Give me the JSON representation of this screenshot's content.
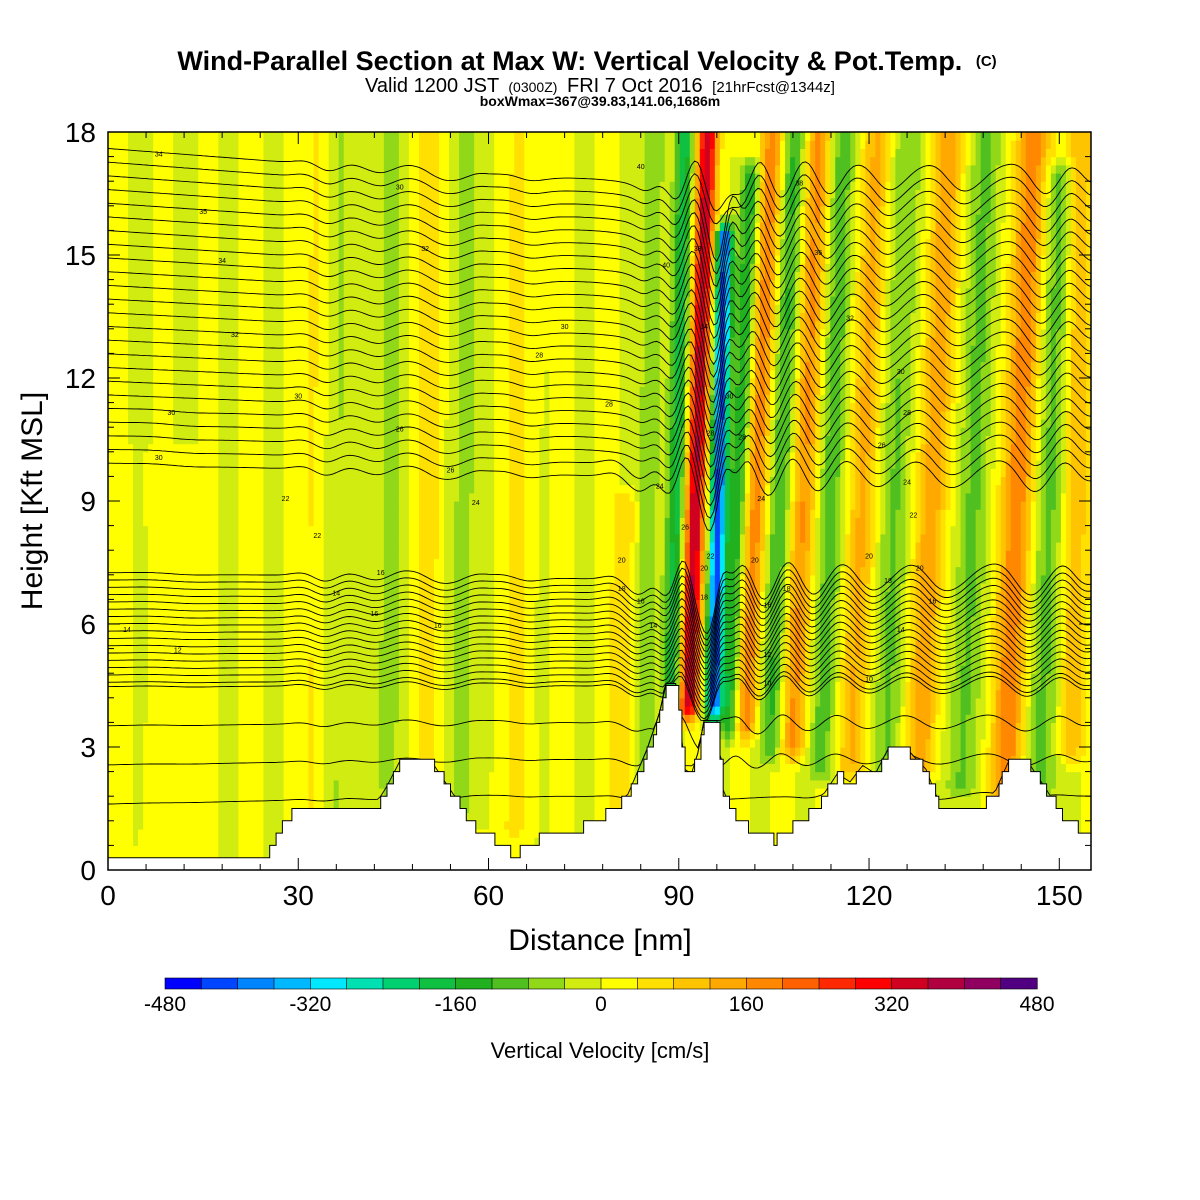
{
  "chart_data": {
    "type": "heatmap",
    "title": "Wind-Parallel Section at Max W: Vertical Velocity & Pot.Temp.",
    "title_mark": "(C)",
    "subtitle_parts": {
      "a": "Valid 1200 JST",
      "b": "(0300Z)",
      "c": "FRI 7 Oct 2016",
      "d": "[21hrFcst@1344z]"
    },
    "subtitle2": "boxWmax=367@39.83,141.06,1686m",
    "xlabel": "Distance [nm]",
    "ylabel": "Height [Kft MSL]",
    "xlim": [
      0,
      155
    ],
    "ylim": [
      0,
      18
    ],
    "x_ticks": [
      0,
      30,
      60,
      90,
      120,
      150
    ],
    "y_ticks": [
      0,
      3,
      6,
      9,
      12,
      15,
      18
    ],
    "colorbar": {
      "label": "Vertical Velocity [cm/s]",
      "ticks": [
        -480,
        -320,
        -160,
        0,
        160,
        320,
        480
      ],
      "colors": [
        "#0000ff",
        "#0045ff",
        "#0085ff",
        "#00b8ff",
        "#00e8ff",
        "#00e0b0",
        "#00d070",
        "#10c040",
        "#20b020",
        "#50c020",
        "#90d818",
        "#d0ec10",
        "#ffff00",
        "#ffe000",
        "#ffc400",
        "#ffa800",
        "#ff8800",
        "#ff6000",
        "#ff2800",
        "#ff0000",
        "#d00020",
        "#b00040",
        "#900060",
        "#500080"
      ]
    },
    "velocity_features": [
      {
        "x": 91.5,
        "w": 1.6,
        "peak": 360,
        "y0": 4.0,
        "y1": 18,
        "tilt": 0.22
      },
      {
        "x": 95.5,
        "w": 1.3,
        "peak": -420,
        "y0": 4.0,
        "y1": 15.5,
        "tilt": 0.15
      },
      {
        "x": 89.0,
        "w": 1.5,
        "peak": -180,
        "y0": 4.5,
        "y1": 18,
        "tilt": 0.15
      },
      {
        "x": 98.0,
        "w": 1.5,
        "peak": -160,
        "y0": 3.5,
        "y1": 17,
        "tilt": 0.25
      },
      {
        "x": 100.5,
        "w": 1.8,
        "peak": 190,
        "y0": 3.5,
        "y1": 18,
        "tilt": 0.3
      },
      {
        "x": 104.5,
        "w": 1.8,
        "peak": -130,
        "y0": 3.0,
        "y1": 18,
        "tilt": 0.25
      },
      {
        "x": 108.0,
        "w": 2.0,
        "peak": 170,
        "y0": 3.0,
        "y1": 18,
        "tilt": 0.28
      },
      {
        "x": 112.5,
        "w": 2.0,
        "peak": -110,
        "y0": 2.5,
        "y1": 18,
        "tilt": 0.22
      },
      {
        "x": 117.0,
        "w": 2.2,
        "peak": 130,
        "y0": 2.5,
        "y1": 18,
        "tilt": 0.28
      },
      {
        "x": 122.5,
        "w": 2.4,
        "peak": -80,
        "y0": 2.5,
        "y1": 18,
        "tilt": 0.24
      },
      {
        "x": 128.0,
        "w": 2.4,
        "peak": 150,
        "y0": 2.5,
        "y1": 18,
        "tilt": 0.3
      },
      {
        "x": 134.5,
        "w": 2.4,
        "peak": -90,
        "y0": 2.0,
        "y1": 18,
        "tilt": 0.25
      },
      {
        "x": 141.5,
        "w": 2.6,
        "peak": 190,
        "y0": 2.0,
        "y1": 18,
        "tilt": 0.28
      },
      {
        "x": 147.0,
        "w": 2.4,
        "peak": -100,
        "y0": 2.0,
        "y1": 17,
        "tilt": 0.2
      },
      {
        "x": 152.0,
        "w": 2.0,
        "peak": 120,
        "y0": 3.0,
        "y1": 18,
        "tilt": 0.1
      },
      {
        "x": 44.0,
        "w": 2.2,
        "peak": -60,
        "y0": 2.0,
        "y1": 18,
        "tilt": 0.05
      },
      {
        "x": 50.0,
        "w": 2.2,
        "peak": 60,
        "y0": 2.0,
        "y1": 18,
        "tilt": 0.05
      },
      {
        "x": 56.0,
        "w": 2.2,
        "peak": -55,
        "y0": 1.5,
        "y1": 18,
        "tilt": 0.05
      },
      {
        "x": 64.0,
        "w": 2.4,
        "peak": 50,
        "y0": 1.0,
        "y1": 18,
        "tilt": 0.05
      },
      {
        "x": 36.0,
        "w": 2.0,
        "peak": -45,
        "y0": 1.5,
        "y1": 18,
        "tilt": 0.05
      },
      {
        "x": 32.0,
        "w": 2.0,
        "peak": 45,
        "y0": 1.5,
        "y1": 18,
        "tilt": 0.05
      },
      {
        "x": 81.0,
        "w": 2.0,
        "peak": 80,
        "y0": 1.0,
        "y1": 9,
        "tilt": 0.05
      },
      {
        "x": 84.5,
        "w": 1.6,
        "peak": -80,
        "y0": 1.5,
        "y1": 18,
        "tilt": 0.1
      },
      {
        "x": 10.0,
        "w": 4.0,
        "peak": 15,
        "y0": 0.3,
        "y1": 10,
        "tilt": 0.0
      }
    ],
    "terrain": [
      [
        0,
        0.3
      ],
      [
        25,
        0.3
      ],
      [
        26,
        0.7
      ],
      [
        28,
        1.2
      ],
      [
        30,
        1.6
      ],
      [
        36,
        1.6
      ],
      [
        42,
        1.5
      ],
      [
        44,
        2.0
      ],
      [
        46,
        2.6
      ],
      [
        51,
        2.6
      ],
      [
        54,
        1.9
      ],
      [
        58,
        1.0
      ],
      [
        62,
        0.6
      ],
      [
        64,
        0.3
      ],
      [
        66,
        0.7
      ],
      [
        70,
        0.8
      ],
      [
        74,
        1.0
      ],
      [
        78,
        1.3
      ],
      [
        82,
        1.8
      ],
      [
        85,
        2.9
      ],
      [
        87,
        3.8
      ],
      [
        88,
        4.5
      ],
      [
        89.5,
        4.5
      ],
      [
        91,
        2.4
      ],
      [
        92,
        2.3
      ],
      [
        93,
        2.8
      ],
      [
        94,
        3.6
      ],
      [
        96,
        3.6
      ],
      [
        97,
        1.9
      ],
      [
        99,
        1.2
      ],
      [
        101,
        1.0
      ],
      [
        103,
        0.9
      ],
      [
        105,
        0.7
      ],
      [
        107,
        0.9
      ],
      [
        109,
        1.2
      ],
      [
        112,
        1.6
      ],
      [
        115,
        2.3
      ],
      [
        117,
        2.1
      ],
      [
        119,
        2.5
      ],
      [
        121,
        2.3
      ],
      [
        123,
        2.9
      ],
      [
        126,
        2.9
      ],
      [
        129,
        2.4
      ],
      [
        131,
        1.6
      ],
      [
        133,
        1.5
      ],
      [
        136,
        1.4
      ],
      [
        138,
        1.6
      ],
      [
        140,
        1.9
      ],
      [
        142,
        2.6
      ],
      [
        145,
        2.6
      ],
      [
        148,
        1.9
      ],
      [
        150,
        1.4
      ],
      [
        153,
        1.0
      ],
      [
        155,
        0.7
      ]
    ],
    "theta_contours": {
      "count": 44,
      "base_height": 0.8,
      "spacing_low": 0.12,
      "spacing_high": 0.42
    },
    "contour_labels": [
      {
        "x": 8,
        "y": 17.4,
        "text": "34"
      },
      {
        "x": 15,
        "y": 16.0,
        "text": "35"
      },
      {
        "x": 18,
        "y": 14.8,
        "text": "34"
      },
      {
        "x": 20,
        "y": 13.0,
        "text": "32"
      },
      {
        "x": 10,
        "y": 11.1,
        "text": "30"
      },
      {
        "x": 8,
        "y": 10.0,
        "text": "30"
      },
      {
        "x": 30,
        "y": 11.5,
        "text": "30"
      },
      {
        "x": 28,
        "y": 9.0,
        "text": "22"
      },
      {
        "x": 33,
        "y": 8.1,
        "text": "22"
      },
      {
        "x": 36,
        "y": 6.7,
        "text": "14"
      },
      {
        "x": 43,
        "y": 7.2,
        "text": "16"
      },
      {
        "x": 42,
        "y": 6.2,
        "text": "16"
      },
      {
        "x": 52,
        "y": 5.9,
        "text": "16"
      },
      {
        "x": 3,
        "y": 5.8,
        "text": "14"
      },
      {
        "x": 11,
        "y": 5.3,
        "text": "12"
      },
      {
        "x": 46,
        "y": 10.7,
        "text": "26"
      },
      {
        "x": 54,
        "y": 9.7,
        "text": "26"
      },
      {
        "x": 58,
        "y": 8.9,
        "text": "24"
      },
      {
        "x": 50,
        "y": 15.1,
        "text": "32"
      },
      {
        "x": 46,
        "y": 16.6,
        "text": "30"
      },
      {
        "x": 72,
        "y": 13.2,
        "text": "30"
      },
      {
        "x": 68,
        "y": 12.5,
        "text": "28"
      },
      {
        "x": 79,
        "y": 11.3,
        "text": "28"
      },
      {
        "x": 81,
        "y": 7.5,
        "text": "20"
      },
      {
        "x": 81,
        "y": 6.8,
        "text": "18"
      },
      {
        "x": 84,
        "y": 6.5,
        "text": "16"
      },
      {
        "x": 86,
        "y": 5.9,
        "text": "14"
      },
      {
        "x": 84,
        "y": 17.1,
        "text": "40"
      },
      {
        "x": 88,
        "y": 14.7,
        "text": "40"
      },
      {
        "x": 87,
        "y": 9.3,
        "text": "24"
      },
      {
        "x": 91,
        "y": 8.3,
        "text": "26"
      },
      {
        "x": 93,
        "y": 15.1,
        "text": "38"
      },
      {
        "x": 94,
        "y": 13.2,
        "text": "34"
      },
      {
        "x": 95,
        "y": 10.6,
        "text": "28"
      },
      {
        "x": 95,
        "y": 7.6,
        "text": "22"
      },
      {
        "x": 94,
        "y": 7.3,
        "text": "20"
      },
      {
        "x": 94,
        "y": 6.6,
        "text": "18"
      },
      {
        "x": 98,
        "y": 11.5,
        "text": "30"
      },
      {
        "x": 100,
        "y": 10.5,
        "text": "28"
      },
      {
        "x": 102,
        "y": 7.5,
        "text": "20"
      },
      {
        "x": 103,
        "y": 9.0,
        "text": "24"
      },
      {
        "x": 104,
        "y": 6.4,
        "text": "16"
      },
      {
        "x": 104,
        "y": 5.2,
        "text": "12"
      },
      {
        "x": 104,
        "y": 4.5,
        "text": "10"
      },
      {
        "x": 107,
        "y": 6.8,
        "text": "18"
      },
      {
        "x": 109,
        "y": 16.7,
        "text": "38"
      },
      {
        "x": 112,
        "y": 15.0,
        "text": "36"
      },
      {
        "x": 117,
        "y": 13.4,
        "text": "32"
      },
      {
        "x": 122,
        "y": 10.3,
        "text": "26"
      },
      {
        "x": 125,
        "y": 12.1,
        "text": "30"
      },
      {
        "x": 126,
        "y": 11.1,
        "text": "28"
      },
      {
        "x": 120,
        "y": 7.6,
        "text": "20"
      },
      {
        "x": 123,
        "y": 7.0,
        "text": "18"
      },
      {
        "x": 126,
        "y": 9.4,
        "text": "24"
      },
      {
        "x": 127,
        "y": 8.6,
        "text": "22"
      },
      {
        "x": 128,
        "y": 7.3,
        "text": "20"
      },
      {
        "x": 130,
        "y": 6.5,
        "text": "16"
      },
      {
        "x": 125,
        "y": 5.8,
        "text": "14"
      },
      {
        "x": 120,
        "y": 4.6,
        "text": "10"
      }
    ]
  }
}
